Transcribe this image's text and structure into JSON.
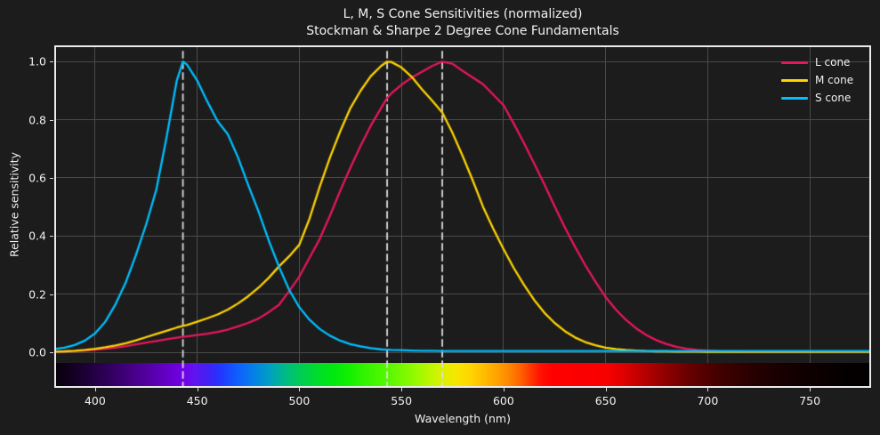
{
  "title": {
    "line1": "L, M, S Cone Sensitivities (normalized)",
    "line2": "Stockman & Sharpe 2 Degree Cone Fundamentals"
  },
  "axes": {
    "xlabel": "Wavelength (nm)",
    "ylabel": "Relative sensitivity",
    "x_tick_labels": [
      "400",
      "450",
      "500",
      "550",
      "600",
      "650",
      "700",
      "750"
    ],
    "y_tick_labels": [
      "0.0",
      "0.2",
      "0.4",
      "0.6",
      "0.8",
      "1.0"
    ]
  },
  "legend": {
    "items": [
      {
        "label": "L cone",
        "color": "#e8175d"
      },
      {
        "label": "M cone",
        "color": "#ffd400"
      },
      {
        "label": "S cone",
        "color": "#00bfff"
      }
    ]
  },
  "colors": {
    "background": "#1c1c1c",
    "grid": "#4a4a4a",
    "spine": "#ebebeb",
    "text": "#f0f0f0",
    "peak_line": "#dcdcdc",
    "L": "#e8175d",
    "M": "#ffd400",
    "S": "#00bfff"
  },
  "chart_data": {
    "type": "line",
    "title": "L, M, S Cone Sensitivities (normalized)",
    "subtitle": "Stockman & Sharpe 2 Degree Cone Fundamentals",
    "xlabel": "Wavelength (nm)",
    "ylabel": "Relative sensitivity",
    "xlim": [
      380,
      780
    ],
    "ylim": [
      -0.123,
      1.053
    ],
    "x_ticks": [
      400,
      450,
      500,
      550,
      600,
      650,
      700,
      750
    ],
    "y_ticks": [
      0.0,
      0.2,
      0.4,
      0.6,
      0.8,
      1.0
    ],
    "grid": true,
    "legend_position": "upper right",
    "peak_lines_nm": [
      443,
      543,
      570
    ],
    "x": [
      380,
      385,
      390,
      395,
      400,
      405,
      410,
      415,
      420,
      425,
      430,
      435,
      440,
      443,
      445,
      450,
      455,
      460,
      465,
      470,
      475,
      480,
      485,
      490,
      495,
      500,
      505,
      510,
      515,
      520,
      525,
      530,
      535,
      540,
      543,
      545,
      550,
      555,
      560,
      565,
      570,
      575,
      580,
      585,
      590,
      595,
      600,
      605,
      610,
      615,
      620,
      625,
      630,
      635,
      640,
      645,
      650,
      655,
      660,
      665,
      670,
      675,
      680,
      685,
      690,
      695,
      700,
      705,
      710,
      715,
      720,
      725,
      730,
      735,
      740,
      745,
      750,
      755,
      760,
      765,
      770,
      775,
      780
    ],
    "series": [
      {
        "name": "L cone",
        "color": "#e8175d",
        "peak_nm": 570,
        "values": [
          0.002,
          0.003,
          0.004,
          0.006,
          0.009,
          0.012,
          0.016,
          0.021,
          0.027,
          0.033,
          0.039,
          0.045,
          0.05,
          0.053,
          0.055,
          0.059,
          0.064,
          0.07,
          0.078,
          0.089,
          0.101,
          0.116,
          0.138,
          0.163,
          0.21,
          0.26,
          0.325,
          0.39,
          0.47,
          0.555,
          0.635,
          0.71,
          0.78,
          0.84,
          0.875,
          0.89,
          0.92,
          0.945,
          0.965,
          0.985,
          1.0,
          0.993,
          0.968,
          0.945,
          0.922,
          0.886,
          0.85,
          0.787,
          0.72,
          0.65,
          0.578,
          0.503,
          0.43,
          0.363,
          0.3,
          0.243,
          0.19,
          0.147,
          0.111,
          0.082,
          0.059,
          0.041,
          0.028,
          0.018,
          0.012,
          0.008,
          0.006,
          0.004,
          0.003,
          0.003,
          0.002,
          0.002,
          0.002,
          0.002,
          0.002,
          0.002,
          0.002,
          0.002,
          0.002,
          0.002,
          0.002,
          0.002,
          0.002
        ]
      },
      {
        "name": "M cone",
        "color": "#ffd400",
        "peak_nm": 543,
        "values": [
          0.002,
          0.003,
          0.005,
          0.008,
          0.012,
          0.017,
          0.023,
          0.031,
          0.041,
          0.052,
          0.063,
          0.074,
          0.085,
          0.091,
          0.094,
          0.105,
          0.117,
          0.13,
          0.147,
          0.168,
          0.193,
          0.222,
          0.256,
          0.295,
          0.33,
          0.37,
          0.46,
          0.57,
          0.67,
          0.76,
          0.84,
          0.9,
          0.95,
          0.985,
          1.0,
          0.999,
          0.98,
          0.948,
          0.905,
          0.866,
          0.825,
          0.755,
          0.675,
          0.59,
          0.5,
          0.425,
          0.355,
          0.29,
          0.232,
          0.18,
          0.136,
          0.101,
          0.073,
          0.051,
          0.035,
          0.024,
          0.016,
          0.011,
          0.008,
          0.006,
          0.004,
          0.003,
          0.003,
          0.002,
          0.002,
          0.002,
          0.001,
          0.001,
          0.001,
          0.001,
          0.001,
          0.001,
          0.001,
          0.001,
          0.001,
          0.001,
          0.001,
          0.001,
          0.001,
          0.001,
          0.001,
          0.001,
          0.001
        ]
      },
      {
        "name": "S cone",
        "color": "#00bfff",
        "peak_nm": 443,
        "values": [
          0.011,
          0.016,
          0.025,
          0.04,
          0.065,
          0.105,
          0.165,
          0.24,
          0.335,
          0.44,
          0.56,
          0.74,
          0.935,
          1.0,
          0.99,
          0.935,
          0.862,
          0.795,
          0.75,
          0.67,
          0.575,
          0.485,
          0.385,
          0.295,
          0.215,
          0.155,
          0.112,
          0.08,
          0.057,
          0.04,
          0.028,
          0.02,
          0.014,
          0.01,
          0.009,
          0.008,
          0.007,
          0.006,
          0.005,
          0.005,
          0.004,
          0.004,
          0.004,
          0.004,
          0.004,
          0.004,
          0.004,
          0.004,
          0.004,
          0.004,
          0.004,
          0.004,
          0.004,
          0.004,
          0.004,
          0.004,
          0.004,
          0.004,
          0.004,
          0.004,
          0.004,
          0.004,
          0.004,
          0.004,
          0.004,
          0.004,
          0.004,
          0.004,
          0.004,
          0.004,
          0.004,
          0.004,
          0.004,
          0.004,
          0.004,
          0.004,
          0.004,
          0.004,
          0.004,
          0.004,
          0.004,
          0.004,
          0.004
        ]
      }
    ],
    "spectrum_bar": {
      "stops": [
        [
          380,
          "#070009"
        ],
        [
          388,
          "#12001f"
        ],
        [
          396,
          "#1e0038"
        ],
        [
          404,
          "#2b0052"
        ],
        [
          412,
          "#3a006e"
        ],
        [
          420,
          "#49008c"
        ],
        [
          428,
          "#5700aa"
        ],
        [
          436,
          "#6600cb"
        ],
        [
          443,
          "#7000e8"
        ],
        [
          449,
          "#5f16f0"
        ],
        [
          455,
          "#431ff5"
        ],
        [
          461,
          "#2434ff"
        ],
        [
          467,
          "#1452ff"
        ],
        [
          473,
          "#0c6cf8"
        ],
        [
          479,
          "#0386e2"
        ],
        [
          485,
          "#009ec4"
        ],
        [
          491,
          "#00b496"
        ],
        [
          497,
          "#00c46a"
        ],
        [
          503,
          "#00d148"
        ],
        [
          510,
          "#00df26"
        ],
        [
          517,
          "#00e90e"
        ],
        [
          524,
          "#12ef00"
        ],
        [
          531,
          "#2ff300"
        ],
        [
          538,
          "#46f600"
        ],
        [
          545,
          "#5ef800"
        ],
        [
          552,
          "#7ef900"
        ],
        [
          559,
          "#a2f900"
        ],
        [
          566,
          "#c8f400"
        ],
        [
          572,
          "#e6ee00"
        ],
        [
          578,
          "#f9e400"
        ],
        [
          584,
          "#ffd400"
        ],
        [
          590,
          "#ffbe00"
        ],
        [
          596,
          "#ffa600"
        ],
        [
          602,
          "#ff8a00"
        ],
        [
          608,
          "#ff6400"
        ],
        [
          613,
          "#ff3a00"
        ],
        [
          618,
          "#ff1200"
        ],
        [
          624,
          "#ff0000"
        ],
        [
          650,
          "#f80000"
        ],
        [
          658,
          "#e20000"
        ],
        [
          666,
          "#c30000"
        ],
        [
          674,
          "#a40000"
        ],
        [
          682,
          "#860000"
        ],
        [
          690,
          "#6b0000"
        ],
        [
          698,
          "#550000"
        ],
        [
          706,
          "#430000"
        ],
        [
          714,
          "#340000"
        ],
        [
          722,
          "#280000"
        ],
        [
          730,
          "#1e0000"
        ],
        [
          740,
          "#150000"
        ],
        [
          750,
          "#0e0000"
        ],
        [
          760,
          "#080000"
        ],
        [
          770,
          "#040000"
        ],
        [
          780,
          "#020000"
        ]
      ]
    }
  }
}
